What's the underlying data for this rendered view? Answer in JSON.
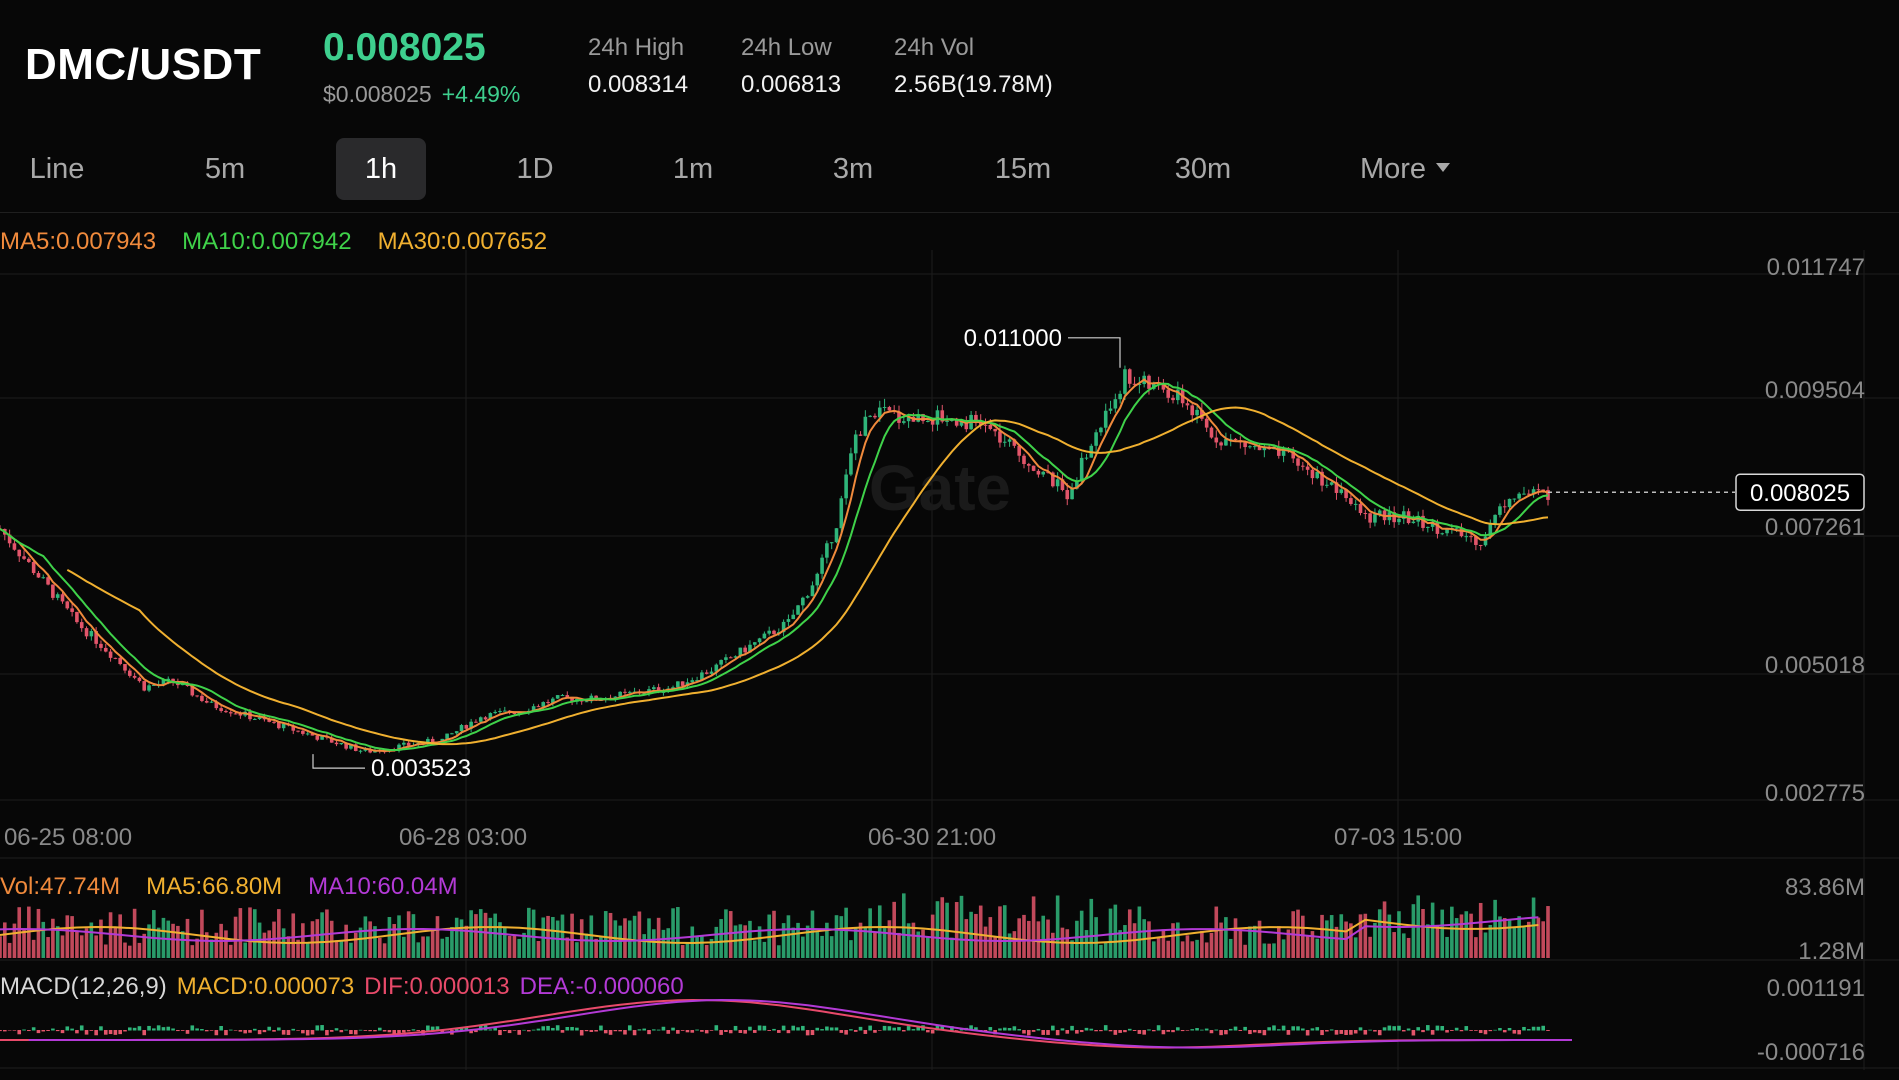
{
  "header": {
    "pair": "DMC/USDT",
    "price": "0.008025",
    "usd_price": "$0.008025",
    "change": "+4.49%",
    "stats": [
      {
        "label": "24h High",
        "value": "0.008314"
      },
      {
        "label": "24h Low",
        "value": "0.006813"
      },
      {
        "label": "24h Vol",
        "value": "2.56B(19.78M)"
      }
    ]
  },
  "tabs": [
    {
      "label": "Line",
      "active": false
    },
    {
      "label": "5m",
      "active": false
    },
    {
      "label": "1h",
      "active": true
    },
    {
      "label": "1D",
      "active": false
    },
    {
      "label": "1m",
      "active": false
    },
    {
      "label": "3m",
      "active": false
    },
    {
      "label": "15m",
      "active": false
    },
    {
      "label": "30m",
      "active": false
    },
    {
      "label": "More",
      "active": false
    }
  ],
  "indicators": {
    "ma": [
      {
        "label": "MA5:0.007943",
        "color": "#f08a3c"
      },
      {
        "label": "MA10:0.007942",
        "color": "#3fd24a"
      },
      {
        "label": "MA30:0.007652",
        "color": "#f0b030"
      }
    ],
    "vol": [
      {
        "label": "Vol:47.74M",
        "color": "#f08a3c"
      },
      {
        "label": "MA5:66.80M",
        "color": "#f0b030"
      },
      {
        "label": "MA10:60.04M",
        "color": "#b33ad6"
      }
    ],
    "macd": [
      {
        "label": "MACD(12,26,9)",
        "color": "#d8d8d8"
      },
      {
        "label": "MACD:0.000073",
        "color": "#f0b030"
      },
      {
        "label": "DIF:0.000013",
        "color": "#e84a6a"
      },
      {
        "label": "DEA:-0.000060",
        "color": "#b33ad6"
      }
    ]
  },
  "watermark": "Gate",
  "colors": {
    "up": "#2fb57a",
    "down": "#e2556a",
    "accent": "#3ecf8e"
  },
  "chart_data": {
    "type": "candlestick",
    "price_axis": [
      "0.011747",
      "0.009504",
      "0.007261",
      "0.005018",
      "0.002775"
    ],
    "time_axis": [
      "06-25 08:00",
      "06-28 03:00",
      "06-30 21:00",
      "07-03 15:00"
    ],
    "ylim": [
      0.002775,
      0.011747
    ],
    "current_price": "0.008025",
    "high_marker": "0.011000",
    "low_marker": "0.003523",
    "close_path": [
      [
        0,
        0.0074
      ],
      [
        8,
        0.0066
      ],
      [
        16,
        0.0058
      ],
      [
        24,
        0.0052
      ],
      [
        30,
        0.0047
      ],
      [
        36,
        0.0048
      ],
      [
        44,
        0.0044
      ],
      [
        52,
        0.0042
      ],
      [
        60,
        0.004
      ],
      [
        68,
        0.0038
      ],
      [
        76,
        0.0036
      ],
      [
        84,
        0.0037
      ],
      [
        92,
        0.0038
      ],
      [
        100,
        0.0042
      ],
      [
        108,
        0.0043
      ],
      [
        116,
        0.0045
      ],
      [
        124,
        0.0045
      ],
      [
        132,
        0.0046
      ],
      [
        140,
        0.0047
      ],
      [
        148,
        0.005
      ],
      [
        156,
        0.0054
      ],
      [
        164,
        0.0058
      ],
      [
        170,
        0.0066
      ],
      [
        174,
        0.0075
      ],
      [
        178,
        0.009
      ],
      [
        182,
        0.0094
      ],
      [
        188,
        0.0093
      ],
      [
        196,
        0.0093
      ],
      [
        204,
        0.0092
      ],
      [
        210,
        0.0088
      ],
      [
        216,
        0.0084
      ],
      [
        222,
        0.008
      ],
      [
        228,
        0.009
      ],
      [
        234,
        0.01
      ],
      [
        240,
        0.0098
      ],
      [
        246,
        0.0096
      ],
      [
        252,
        0.009
      ],
      [
        260,
        0.0088
      ],
      [
        268,
        0.0086
      ],
      [
        276,
        0.0082
      ],
      [
        284,
        0.0076
      ],
      [
        292,
        0.0076
      ],
      [
        300,
        0.0074
      ],
      [
        308,
        0.0072
      ],
      [
        314,
        0.008
      ],
      [
        322,
        0.008
      ]
    ],
    "volume_axis": [
      "83.86M",
      "1.28M"
    ],
    "macd_axis": [
      "0.001191",
      "-0.000716"
    ]
  }
}
